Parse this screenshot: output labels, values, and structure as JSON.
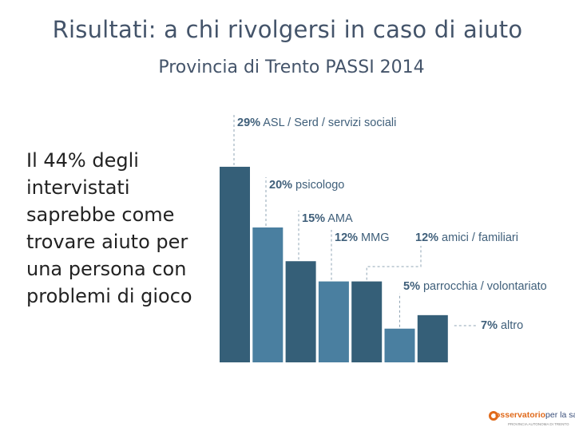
{
  "header": {
    "title": "Risultati: a chi rivolgersi in caso di aiuto",
    "subtitle": "Provincia di Trento PASSI 2014"
  },
  "body_text": "Il 44% degli intervistati saprebbe come trovare aiuto per una persona con problemi di gioco",
  "chart_data": {
    "type": "bar",
    "categories": [
      "ASL / Serd / servizi sociali",
      "psicologo",
      "AMA",
      "MMG",
      "amici / familiari",
      "parrocchia / volontariato",
      "altro"
    ],
    "values": [
      29,
      20,
      15,
      12,
      12,
      5,
      7
    ],
    "labels": [
      "29%",
      "20%",
      "15%",
      "12%",
      "12%",
      "5%",
      "7%"
    ],
    "value_unit": "%",
    "colors": [
      "#355f78",
      "#4a7fa0",
      "#355f78",
      "#4a7fa0",
      "#355f78",
      "#4a7fa0",
      "#355f78"
    ],
    "label_color": "#3f5f7a",
    "grid": false,
    "legend": "none"
  },
  "logo": {
    "text_a": "osservatorio",
    "text_b": "per la salute",
    "tagline": "PROVINCIA AUTONOMA DI TRENTO"
  }
}
